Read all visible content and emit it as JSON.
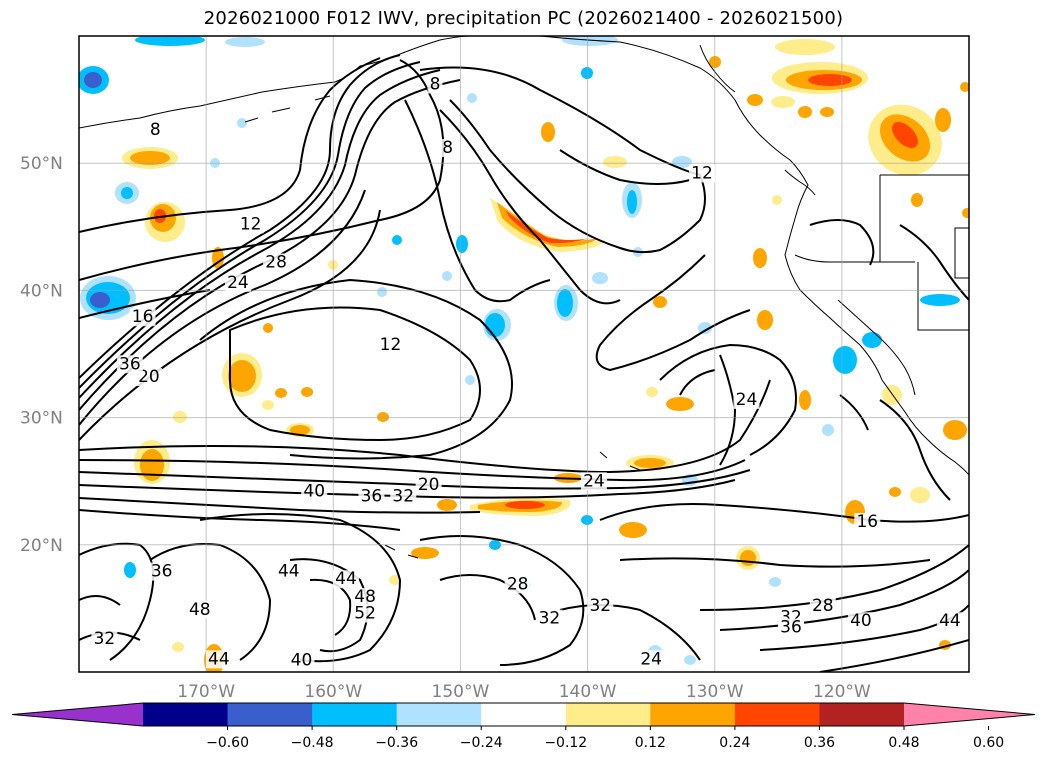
{
  "title": "2026021000 F012 IWV, precipitation PC (2026021400 - 2026021500)",
  "map": {
    "lat_ticks": [
      "50°N",
      "40°N",
      "30°N",
      "20°N"
    ],
    "lon_ticks": [
      "170°W",
      "160°W",
      "150°W",
      "140°W",
      "130°W",
      "120°W"
    ],
    "gridlines": true,
    "contour_labels": [
      {
        "text": "8",
        "lon": -152,
        "lat": 55.8
      },
      {
        "text": "8",
        "lon": -151,
        "lat": 50.8
      },
      {
        "text": "8",
        "lon": -174,
        "lat": 52.2
      },
      {
        "text": "12",
        "lon": -131,
        "lat": 48.8
      },
      {
        "text": "12",
        "lon": -166.5,
        "lat": 44.8
      },
      {
        "text": "12",
        "lon": -155.5,
        "lat": 35.3
      },
      {
        "text": "16",
        "lon": -175,
        "lat": 37.5
      },
      {
        "text": "16",
        "lon": -118,
        "lat": 21.4
      },
      {
        "text": "20",
        "lon": -174.5,
        "lat": 32.8
      },
      {
        "text": "20",
        "lon": -152.5,
        "lat": 24.3
      },
      {
        "text": "24",
        "lon": -167.5,
        "lat": 40.2
      },
      {
        "text": "24",
        "lon": -127.5,
        "lat": 31
      },
      {
        "text": "24",
        "lon": -139.5,
        "lat": 24.6
      },
      {
        "text": "24",
        "lon": -135,
        "lat": 10.6
      },
      {
        "text": "28",
        "lon": -164.5,
        "lat": 41.8
      },
      {
        "text": "28",
        "lon": -145.5,
        "lat": 16.5
      },
      {
        "text": "28",
        "lon": -121.5,
        "lat": 14.8
      },
      {
        "text": "32",
        "lon": -154.5,
        "lat": 23.4
      },
      {
        "text": "32",
        "lon": -178,
        "lat": 12.2
      },
      {
        "text": "32",
        "lon": -143,
        "lat": 13.8
      },
      {
        "text": "32",
        "lon": -139,
        "lat": 14.8
      },
      {
        "text": "32",
        "lon": -124,
        "lat": 13.9
      },
      {
        "text": "36",
        "lon": -176,
        "lat": 33.8
      },
      {
        "text": "36",
        "lon": -157,
        "lat": 23.4
      },
      {
        "text": "36",
        "lon": -173.5,
        "lat": 17.5
      },
      {
        "text": "36",
        "lon": -124,
        "lat": 13.1
      },
      {
        "text": "40",
        "lon": -161.5,
        "lat": 23.8
      },
      {
        "text": "40",
        "lon": -162.5,
        "lat": 10.5
      },
      {
        "text": "40",
        "lon": -118.5,
        "lat": 13.6
      },
      {
        "text": "44",
        "lon": -163.5,
        "lat": 17.5
      },
      {
        "text": "44",
        "lon": -159,
        "lat": 16.9
      },
      {
        "text": "44",
        "lon": -169,
        "lat": 10.6
      },
      {
        "text": "44",
        "lon": -111.5,
        "lat": 13.6
      },
      {
        "text": "48",
        "lon": -157.5,
        "lat": 15.5
      },
      {
        "text": "48",
        "lon": -170.5,
        "lat": 14.5
      },
      {
        "text": "52",
        "lon": -157.5,
        "lat": 14.2
      }
    ]
  },
  "colorbar": {
    "ticks": [
      "−0.60",
      "−0.48",
      "−0.36",
      "−0.24",
      "−0.12",
      "0.12",
      "0.24",
      "0.36",
      "0.48",
      "0.60"
    ],
    "colors": [
      "#9932cc",
      "#00008b",
      "#3a5fcd",
      "#00bfff",
      "#b0e2ff",
      "#ffffff",
      "#ffec8b",
      "#ffa500",
      "#ff4500",
      "#b22222",
      "#ff82ab"
    ]
  },
  "chart_data": {
    "type": "heatmap",
    "title": "2026021000 F012 IWV, precipitation PC (2026021400 - 2026021500)",
    "xlabel": "",
    "ylabel": "",
    "lon_range": [
      -180,
      -110
    ],
    "lat_range": [
      10,
      60
    ],
    "lon_ticks": [
      -170,
      -160,
      -150,
      -140,
      -130,
      -120
    ],
    "lat_ticks": [
      20,
      30,
      40,
      50
    ],
    "grid": true,
    "fill_variable_levels": [
      -0.6,
      -0.48,
      -0.36,
      -0.24,
      -0.12,
      0.12,
      0.24,
      0.36,
      0.48,
      0.6
    ],
    "contour_levels_IWV": [
      4,
      8,
      12,
      16,
      20,
      24,
      28,
      32,
      36,
      40,
      44,
      48,
      52
    ],
    "colorbar": "bottom, extend both"
  }
}
